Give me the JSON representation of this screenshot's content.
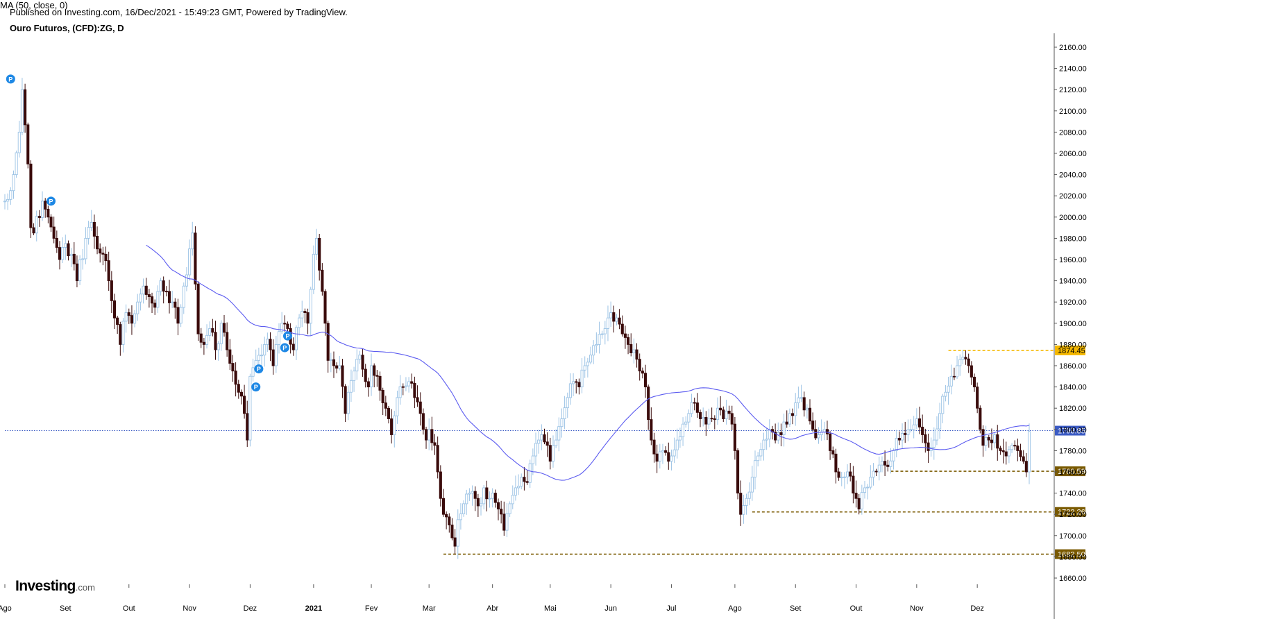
{
  "header": {
    "published": "Published on Investing.com, 16/Dec/2021 - 15:49:23 GMT, Powered by TradingView.",
    "symbol": "Ouro Futuros, (CFD):ZG, D"
  },
  "indicator": {
    "label": "MA (50, close, 0)"
  },
  "branding": {
    "logo_main": "Investing",
    "logo_suffix": ".com"
  },
  "colors": {
    "up_candle": "#9cc3e5",
    "down_candle": "#3a0b0b",
    "ma_line": "#5b5bf0",
    "last_price": "#3b5bc4",
    "resistance": "#f5b800",
    "support": "#7a5a00",
    "marker": "#1e88e5"
  },
  "chart_data": {
    "type": "candlestick",
    "ylim": [
      1650,
      2170
    ],
    "y_ticks": [
      "2160.00",
      "2140.00",
      "2120.00",
      "2100.00",
      "2080.00",
      "2060.00",
      "2040.00",
      "2020.00",
      "2000.00",
      "1980.00",
      "1960.00",
      "1940.00",
      "1920.00",
      "1900.00",
      "1880.00",
      "1860.00",
      "1840.00",
      "1820.00",
      "1800.00",
      "1780.00",
      "1760.00",
      "1740.00",
      "1720.00",
      "1700.00",
      "1680.00",
      "1660.00"
    ],
    "y_tick_values": [
      2160,
      2140,
      2120,
      2100,
      2080,
      2060,
      2040,
      2020,
      2000,
      1980,
      1960,
      1940,
      1920,
      1900,
      1880,
      1860,
      1840,
      1820,
      1800,
      1780,
      1760,
      1740,
      1720,
      1700,
      1680,
      1660
    ],
    "x_labels": [
      "Ago",
      "Set",
      "Out",
      "Nov",
      "Dez",
      "2021",
      "Fev",
      "Mar",
      "Abr",
      "Mai",
      "Jun",
      "Jul",
      "Ago",
      "Set",
      "Out",
      "Nov",
      "Dez"
    ],
    "x_label_index": [
      0,
      21,
      43,
      64,
      85,
      107,
      127,
      147,
      169,
      189,
      210,
      231,
      253,
      274,
      295,
      316,
      337
    ],
    "start_value": 2015,
    "close_path": [
      [
        0,
        2015
      ],
      [
        3,
        2040
      ],
      [
        5,
        2080
      ],
      [
        6,
        2120
      ],
      [
        8,
        2050
      ],
      [
        9,
        1990
      ],
      [
        10,
        1985
      ],
      [
        13,
        2015
      ],
      [
        15,
        2000
      ],
      [
        17,
        1980
      ],
      [
        19,
        1960
      ],
      [
        21,
        1975
      ],
      [
        23,
        1965
      ],
      [
        25,
        1940
      ],
      [
        28,
        1980
      ],
      [
        30,
        1995
      ],
      [
        32,
        1970
      ],
      [
        34,
        1965
      ],
      [
        36,
        1940
      ],
      [
        38,
        1905
      ],
      [
        40,
        1880
      ],
      [
        42,
        1910
      ],
      [
        44,
        1900
      ],
      [
        46,
        1920
      ],
      [
        48,
        1935
      ],
      [
        50,
        1925
      ],
      [
        52,
        1915
      ],
      [
        54,
        1940
      ],
      [
        56,
        1930
      ],
      [
        58,
        1920
      ],
      [
        60,
        1900
      ],
      [
        62,
        1935
      ],
      [
        64,
        1970
      ],
      [
        65,
        1985
      ],
      [
        67,
        1890
      ],
      [
        69,
        1880
      ],
      [
        71,
        1895
      ],
      [
        73,
        1875
      ],
      [
        75,
        1900
      ],
      [
        77,
        1875
      ],
      [
        79,
        1855
      ],
      [
        81,
        1835
      ],
      [
        83,
        1815
      ],
      [
        84,
        1790
      ],
      [
        85,
        1850
      ],
      [
        87,
        1865
      ],
      [
        89,
        1870
      ],
      [
        90,
        1880
      ],
      [
        91,
        1885
      ],
      [
        92,
        1875
      ],
      [
        93,
        1860
      ],
      [
        94,
        1880
      ],
      [
        96,
        1900
      ],
      [
        98,
        1895
      ],
      [
        100,
        1875
      ],
      [
        102,
        1905
      ],
      [
        104,
        1910
      ],
      [
        105,
        1900
      ],
      [
        107,
        1965
      ],
      [
        108,
        1980
      ],
      [
        109,
        1950
      ],
      [
        110,
        1930
      ],
      [
        111,
        1900
      ],
      [
        112,
        1865
      ],
      [
        114,
        1860
      ],
      [
        116,
        1860
      ],
      [
        118,
        1815
      ],
      [
        119,
        1835
      ],
      [
        121,
        1855
      ],
      [
        123,
        1870
      ],
      [
        125,
        1845
      ],
      [
        126,
        1840
      ],
      [
        127,
        1860
      ],
      [
        129,
        1850
      ],
      [
        131,
        1825
      ],
      [
        133,
        1810
      ],
      [
        134,
        1795
      ],
      [
        136,
        1830
      ],
      [
        138,
        1840
      ],
      [
        140,
        1845
      ],
      [
        142,
        1830
      ],
      [
        144,
        1815
      ],
      [
        145,
        1800
      ],
      [
        146,
        1790
      ],
      [
        147,
        1800
      ],
      [
        149,
        1785
      ],
      [
        150,
        1760
      ],
      [
        151,
        1735
      ],
      [
        152,
        1720
      ],
      [
        154,
        1710
      ],
      [
        156,
        1690
      ],
      [
        157,
        1715
      ],
      [
        159,
        1730
      ],
      [
        161,
        1740
      ],
      [
        163,
        1735
      ],
      [
        165,
        1730
      ],
      [
        166,
        1745
      ],
      [
        168,
        1735
      ],
      [
        169,
        1740
      ],
      [
        171,
        1725
      ],
      [
        173,
        1705
      ],
      [
        175,
        1730
      ],
      [
        177,
        1745
      ],
      [
        179,
        1755
      ],
      [
        181,
        1750
      ],
      [
        183,
        1775
      ],
      [
        185,
        1790
      ],
      [
        186,
        1795
      ],
      [
        188,
        1785
      ],
      [
        189,
        1770
      ],
      [
        191,
        1790
      ],
      [
        193,
        1810
      ],
      [
        195,
        1830
      ],
      [
        197,
        1845
      ],
      [
        199,
        1840
      ],
      [
        201,
        1860
      ],
      [
        203,
        1870
      ],
      [
        205,
        1880
      ],
      [
        207,
        1890
      ],
      [
        208,
        1895
      ],
      [
        209,
        1905
      ],
      [
        210,
        1910
      ],
      [
        212,
        1905
      ],
      [
        214,
        1890
      ],
      [
        216,
        1880
      ],
      [
        218,
        1875
      ],
      [
        220,
        1855
      ],
      [
        222,
        1840
      ],
      [
        224,
        1790
      ],
      [
        226,
        1770
      ],
      [
        228,
        1780
      ],
      [
        230,
        1770
      ],
      [
        231,
        1775
      ],
      [
        233,
        1790
      ],
      [
        235,
        1805
      ],
      [
        237,
        1815
      ],
      [
        239,
        1825
      ],
      [
        241,
        1810
      ],
      [
        243,
        1805
      ],
      [
        245,
        1810
      ],
      [
        247,
        1820
      ],
      [
        249,
        1810
      ],
      [
        251,
        1815
      ],
      [
        252,
        1805
      ],
      [
        253,
        1780
      ],
      [
        254,
        1740
      ],
      [
        255,
        1720
      ],
      [
        257,
        1735
      ],
      [
        259,
        1755
      ],
      [
        261,
        1775
      ],
      [
        263,
        1790
      ],
      [
        265,
        1800
      ],
      [
        267,
        1790
      ],
      [
        269,
        1795
      ],
      [
        271,
        1805
      ],
      [
        272,
        1815
      ],
      [
        274,
        1825
      ],
      [
        276,
        1830
      ],
      [
        278,
        1820
      ],
      [
        280,
        1800
      ],
      [
        282,
        1795
      ],
      [
        284,
        1800
      ],
      [
        286,
        1780
      ],
      [
        288,
        1760
      ],
      [
        290,
        1755
      ],
      [
        292,
        1760
      ],
      [
        294,
        1740
      ],
      [
        295,
        1735
      ],
      [
        296,
        1725
      ],
      [
        298,
        1745
      ],
      [
        300,
        1755
      ],
      [
        302,
        1760
      ],
      [
        304,
        1770
      ],
      [
        306,
        1765
      ],
      [
        308,
        1780
      ],
      [
        310,
        1790
      ],
      [
        312,
        1795
      ],
      [
        314,
        1800
      ],
      [
        316,
        1810
      ],
      [
        318,
        1795
      ],
      [
        320,
        1780
      ],
      [
        322,
        1790
      ],
      [
        324,
        1815
      ],
      [
        326,
        1835
      ],
      [
        328,
        1850
      ],
      [
        330,
        1860
      ],
      [
        332,
        1868
      ],
      [
        334,
        1860
      ],
      [
        336,
        1840
      ],
      [
        337,
        1820
      ],
      [
        338,
        1800
      ],
      [
        339,
        1785
      ],
      [
        341,
        1790
      ],
      [
        343,
        1795
      ],
      [
        345,
        1780
      ],
      [
        347,
        1775
      ],
      [
        349,
        1785
      ],
      [
        351,
        1780
      ],
      [
        353,
        1770
      ],
      [
        354,
        1760
      ],
      [
        355,
        1798
      ]
    ],
    "ma_period": 50,
    "markers": [
      {
        "index": 2,
        "price": 2130,
        "label": "P"
      },
      {
        "index": 16,
        "price": 2015,
        "label": "P"
      },
      {
        "index": 87,
        "price": 1840,
        "label": "P"
      },
      {
        "index": 88,
        "price": 1857,
        "label": "P"
      },
      {
        "index": 97,
        "price": 1877,
        "label": "P"
      },
      {
        "index": 98,
        "price": 1888,
        "label": "P"
      }
    ],
    "last_price": {
      "value": 1798.85,
      "label": "1798.85"
    },
    "levels": [
      {
        "value": 1874.45,
        "label": "1874.45",
        "from_index": 327,
        "kind": "resistance"
      },
      {
        "value": 1760.59,
        "label": "1760.59",
        "from_index": 307,
        "kind": "support"
      },
      {
        "value": 1722.26,
        "label": "1722.26",
        "from_index": 259,
        "kind": "support"
      },
      {
        "value": 1682.5,
        "label": "1682.50",
        "from_index": 152,
        "kind": "support"
      }
    ]
  }
}
